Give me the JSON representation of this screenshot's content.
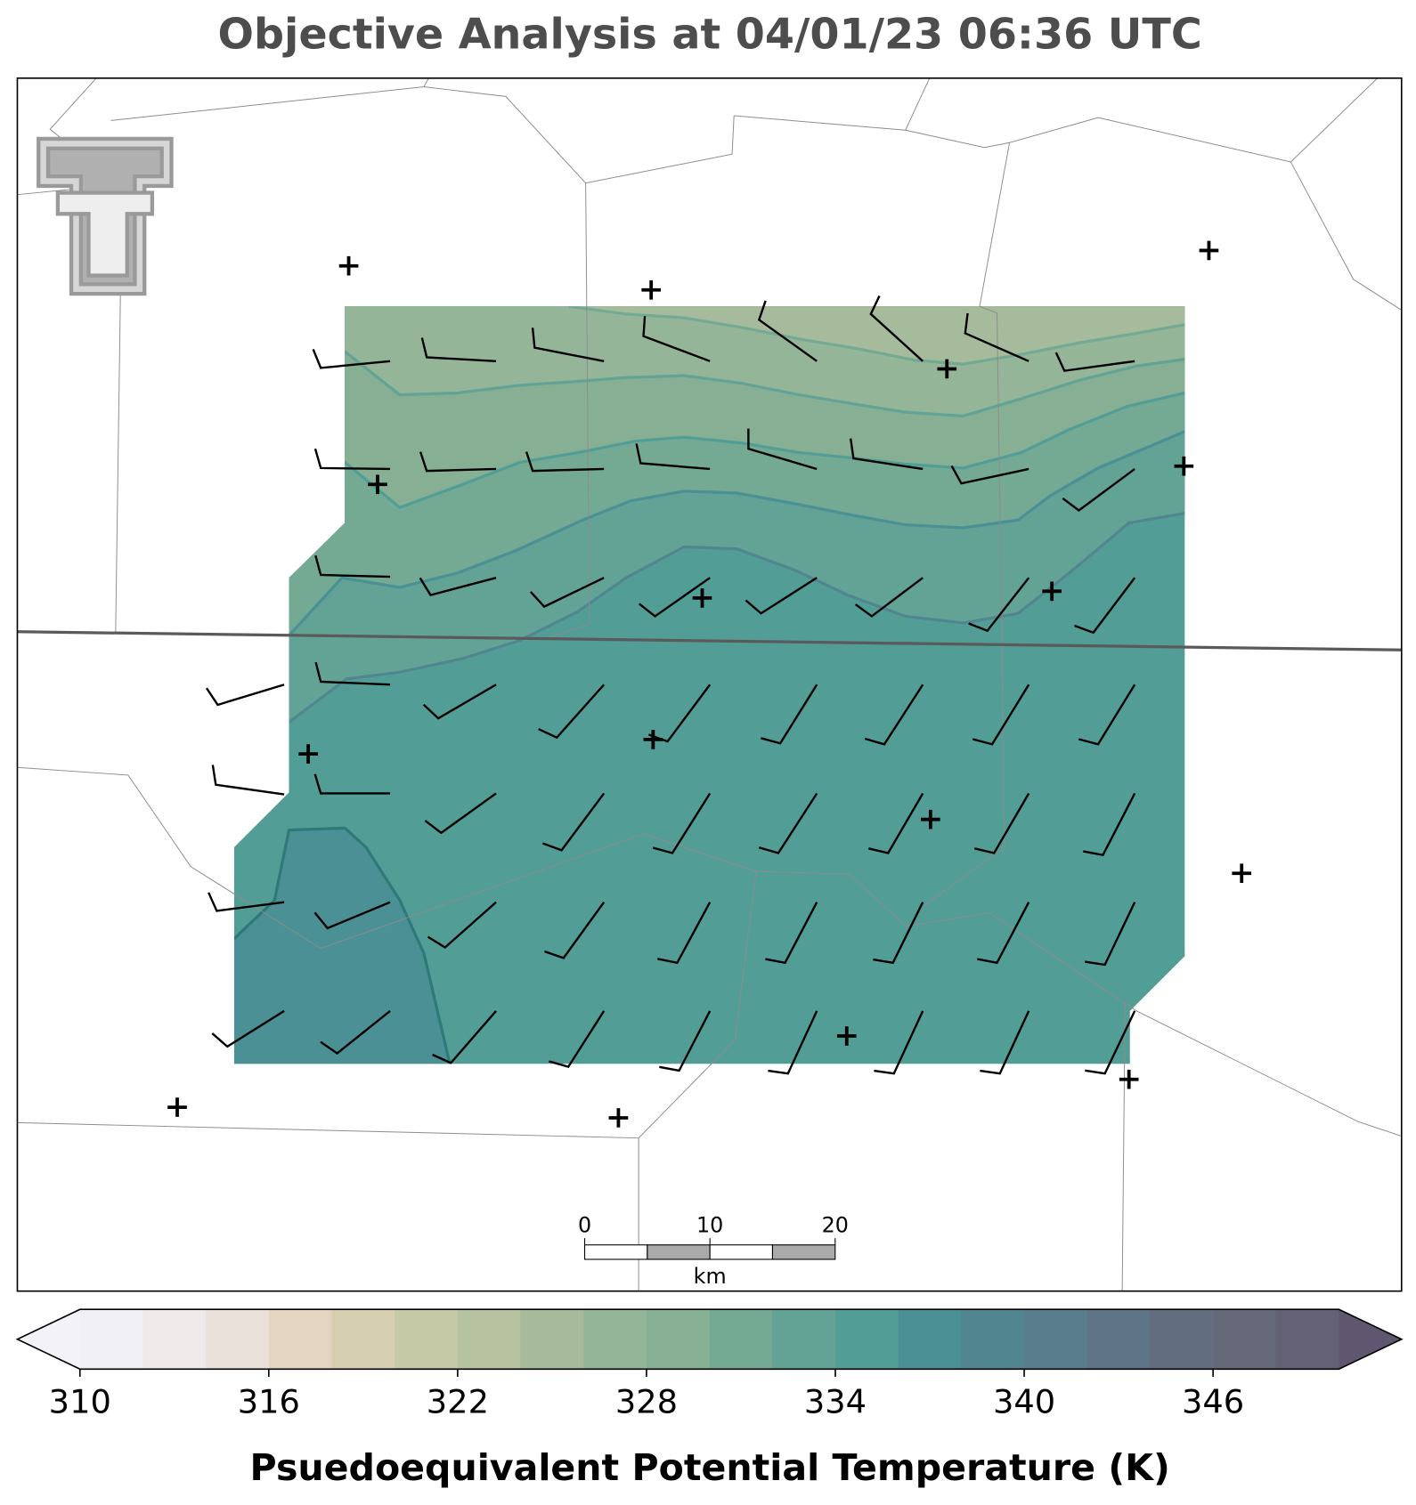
{
  "title": "Objective Analysis at 04/01/23 06:36 UTC",
  "colorbar": {
    "label": "Psuedoequivalent Potential Temperature (K)",
    "lim": [
      310,
      350
    ],
    "ticks": [
      310,
      316,
      322,
      328,
      334,
      340,
      346
    ],
    "colors": [
      "#f0eff4",
      "#eeeaea",
      "#e9e1da",
      "#e4d5c0",
      "#d5ceb0",
      "#c5c9a6",
      "#b6c2a0",
      "#a6bb9c",
      "#95b598",
      "#87af94",
      "#74a993",
      "#62a396",
      "#539d97",
      "#4a9094",
      "#518690",
      "#597d8c",
      "#5f7587",
      "#626d80",
      "#656879",
      "#646076"
    ],
    "extend_colors": [
      "#f3f2f8",
      "#5f5670"
    ]
  },
  "scale_bar": {
    "lim": [
      0,
      20
    ],
    "ticks": [
      0,
      10,
      20
    ],
    "label": "km"
  }
}
